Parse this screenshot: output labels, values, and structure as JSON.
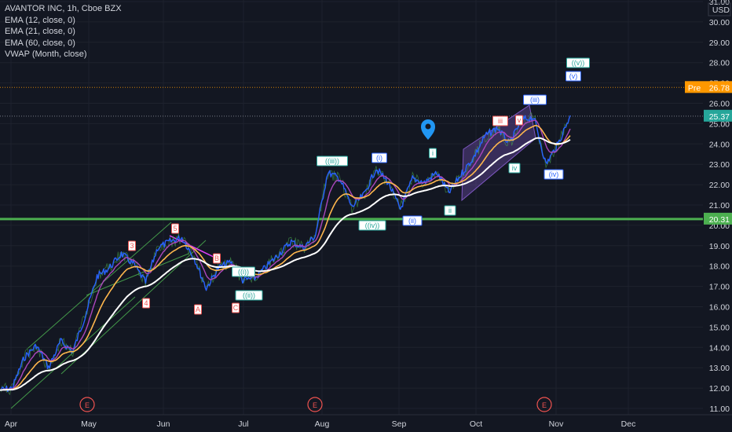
{
  "legend": {
    "symbol": "AVANTOR INC, 1h, Cboe BZX",
    "ind1": "EMA (12, close, 0)",
    "ind2": "EMA (21, close, 0)",
    "ind3": "EMA (60, close, 0)",
    "ind4": "VWAP (Month, close)"
  },
  "colors": {
    "background": "#131722",
    "grid": "#1e222d",
    "price_line": "#2962ff",
    "ema12": "#ab47bc",
    "ema21": "#ffb74d",
    "ema60": "#ffffff",
    "support": "#4caf50",
    "channel": "#7e57c2",
    "label_green": "#26a69a",
    "label_red": "#ef5350"
  },
  "chart_data": {
    "type": "line",
    "y_axis": {
      "ticks": [
        "31.00",
        "30.00",
        "29.00",
        "28.00",
        "27.00",
        "26.00",
        "25.00",
        "24.00",
        "23.00",
        "22.00",
        "21.00",
        "20.00",
        "19.00",
        "18.00",
        "17.00",
        "16.00",
        "15.00",
        "14.00",
        "13.00",
        "12.00",
        "11.00"
      ],
      "currency": "USD",
      "range": [
        10.8,
        31.2
      ]
    },
    "x_axis": {
      "ticks": [
        "Apr",
        "May",
        "Jun",
        "Jul",
        "Aug",
        "Sep",
        "Oct",
        "Nov",
        "Dec"
      ]
    },
    "price_path": [
      [
        "Apr",
        11.9
      ],
      [
        "Apr+",
        12.0
      ],
      [
        "Apr++",
        13.5
      ],
      [
        "Apr+++",
        14.1
      ],
      [
        "Apr++++",
        13.0
      ],
      [
        "mid-Apr",
        14.3
      ],
      [
        "late-Apr",
        13.8
      ],
      [
        "May",
        15.5
      ],
      [
        "May+",
        17.5
      ],
      [
        "May++",
        17.9
      ],
      [
        "May+++",
        18.6
      ],
      [
        "mid-May",
        18.1
      ],
      [
        "late-May",
        17.2
      ],
      [
        "late-May+",
        18.9
      ],
      [
        "Jun",
        19.2
      ],
      [
        "Jun+",
        19.4
      ],
      [
        "Jun++",
        18.4
      ],
      [
        "Jun+++",
        16.9
      ],
      [
        "mid-Jun",
        17.9
      ],
      [
        "late-Jun",
        18.2
      ],
      [
        "late-Jun+",
        17.3
      ],
      [
        "Jul",
        17.4
      ],
      [
        "Jul+",
        18.0
      ],
      [
        "Jul++",
        18.6
      ],
      [
        "mid-Jul",
        19.2
      ],
      [
        "late-Jul",
        18.9
      ],
      [
        "late-Jul+",
        19.5
      ],
      [
        "Aug",
        22.6
      ],
      [
        "Aug+",
        22.3
      ],
      [
        "Aug++",
        20.9
      ],
      [
        "mid-Aug",
        21.5
      ],
      [
        "late-Aug",
        22.8
      ],
      [
        "late-Aug+",
        22.1
      ],
      [
        "Sep",
        20.8
      ],
      [
        "Sep+",
        22.3
      ],
      [
        "Sep++",
        22.1
      ],
      [
        "mid-Sep",
        22.6
      ],
      [
        "late-Sep",
        21.6
      ],
      [
        "late-Sep+",
        22.5
      ],
      [
        "Oct",
        23.3
      ],
      [
        "Oct+",
        24.4
      ],
      [
        "Oct++",
        24.8
      ],
      [
        "mid-Oct",
        24.0
      ],
      [
        "late-Oct",
        25.2
      ],
      [
        "late-Oct+",
        25.3
      ],
      [
        "Nov",
        23.0
      ],
      [
        "Nov+",
        24.0
      ],
      [
        "Nov++",
        25.4
      ]
    ],
    "support_level": 20.31,
    "last_price": 25.37,
    "pre_market": {
      "label": "Pre",
      "value": 26.78
    },
    "wave_labels": [
      {
        "text": "3",
        "color": "red"
      },
      {
        "text": "4",
        "color": "red"
      },
      {
        "text": "5",
        "color": "red"
      },
      {
        "text": "A",
        "color": "red"
      },
      {
        "text": "B",
        "color": "red"
      },
      {
        "text": "C",
        "color": "red"
      },
      {
        "text": "((i))",
        "color": "green"
      },
      {
        "text": "((ii))",
        "color": "green"
      },
      {
        "text": "((iii))",
        "color": "green"
      },
      {
        "text": "((iv))",
        "color": "green"
      },
      {
        "text": "((v))",
        "color": "green"
      },
      {
        "text": "(i)",
        "color": "blue"
      },
      {
        "text": "(ii)",
        "color": "blue"
      },
      {
        "text": "(iii)",
        "color": "blue"
      },
      {
        "text": "(iv)",
        "color": "blue"
      },
      {
        "text": "(v)",
        "color": "blue"
      },
      {
        "text": "i",
        "color": "green"
      },
      {
        "text": "ii",
        "color": "green"
      },
      {
        "text": "iii",
        "color": "red"
      },
      {
        "text": "iv",
        "color": "green"
      },
      {
        "text": "v",
        "color": "red"
      }
    ],
    "event_marker": "E"
  }
}
